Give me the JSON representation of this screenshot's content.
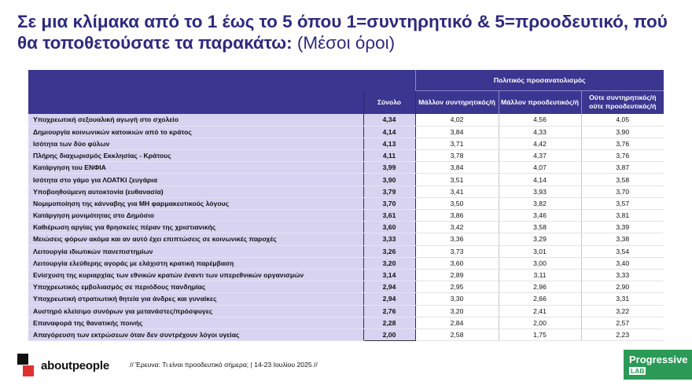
{
  "title": {
    "main": "Σε μια κλίμακα από το 1 έως το 5 όπου 1=συντηρητικό & 5=προοδευτικό, πού θα τοποθετούσατε τα παρακάτω:",
    "suffix": "(Μέσοι όροι)"
  },
  "chart_data": {
    "type": "table",
    "group_header": "Πολιτικός προσανατολισμός",
    "columns": [
      "Σύνολο",
      "Μάλλον συντηρητικός/ή",
      "Μάλλον προοδευτικός/ή",
      "Ούτε συντηρητικός/ή ούτε προοδευτικός/ή"
    ],
    "rows": [
      {
        "label": "Υποχρεωτική σεξουαλική αγωγή στο σχολείο",
        "values": [
          "4,34",
          "4,02",
          "4,56",
          "4,05"
        ]
      },
      {
        "label": "Δημιουργία κοινωνικών κατοικιών από το κράτος",
        "values": [
          "4,14",
          "3,84",
          "4,33",
          "3,90"
        ]
      },
      {
        "label": "Ισότητα των δύο φύλων",
        "values": [
          "4,13",
          "3,71",
          "4,42",
          "3,76"
        ]
      },
      {
        "label": "Πλήρης διαχωρισμός Εκκλησίας - Κράτους",
        "values": [
          "4,11",
          "3,78",
          "4,37",
          "3,76"
        ]
      },
      {
        "label": "Κατάργηση του ΕΝΦΙΑ",
        "values": [
          "3,99",
          "3,84",
          "4,07",
          "3,87"
        ]
      },
      {
        "label": "Ισότητα στο γάμο για ΛΟΑΤΚΙ ζευγάρια",
        "values": [
          "3,90",
          "3,51",
          "4,14",
          "3,58"
        ]
      },
      {
        "label": "Υποβοηθούμενη αυτοκτονία (ευθανασία)",
        "values": [
          "3,79",
          "3,41",
          "3,93",
          "3,70"
        ]
      },
      {
        "label": "Νομιμοποίηση της κάνναβης για ΜΗ φαρμακευτικούς λόγους",
        "values": [
          "3,70",
          "3,50",
          "3,82",
          "3,57"
        ]
      },
      {
        "label": "Κατάργηση μονιμότητας στο Δημόσιο",
        "values": [
          "3,61",
          "3,86",
          "3,46",
          "3,81"
        ]
      },
      {
        "label": "Καθιέρωση αργίας για θρησκείες πέραν της χριστιανικής",
        "values": [
          "3,60",
          "3,42",
          "3,58",
          "3,39"
        ]
      },
      {
        "label": "Μειώσεις φόρων ακόμα και αν αυτό έχει επιπτώσεις σε κοινωνικές παροχές",
        "values": [
          "3,33",
          "3,36",
          "3,29",
          "3,38"
        ]
      },
      {
        "label": "Λειτουργία ιδιωτικών πανεπιστημίων",
        "values": [
          "3,26",
          "3,73",
          "3,01",
          "3,54"
        ]
      },
      {
        "label": "Λειτουργία ελεύθερης αγοράς με ελάχιστη κρατική παρέμβαση",
        "values": [
          "3,20",
          "3,60",
          "3,00",
          "3,40"
        ]
      },
      {
        "label": "Ενίσχυση της κυριαρχίας των εθνικών κρατών έναντι των υπερεθνικών οργανισμών",
        "values": [
          "3,14",
          "2,89",
          "3,11",
          "3,33"
        ]
      },
      {
        "label": "Υποχρεωτικός εμβολιασμός σε περιόδους πανδημίας",
        "values": [
          "2,94",
          "2,95",
          "2,96",
          "2,90"
        ]
      },
      {
        "label": "Υποχρεωτική στρατιωτική θητεία για άνδρες και γυναίκες",
        "values": [
          "2,94",
          "3,30",
          "2,66",
          "3,31"
        ]
      },
      {
        "label": "Αυστηρό κλείσιμο συνόρων για μετανάστες/πρόσφυγες",
        "values": [
          "2,76",
          "3,20",
          "2,41",
          "3,22"
        ]
      },
      {
        "label": "Επαναφορά της θανατικής ποινής",
        "values": [
          "2,28",
          "2,84",
          "2,00",
          "2,57"
        ]
      },
      {
        "label": "Απαγόρευση των εκτρώσεων όταν δεν συντρέχουν λόγοι υγείας",
        "values": [
          "2,00",
          "2,58",
          "1,75",
          "2,23"
        ]
      }
    ]
  },
  "footer": {
    "logo_text": "aboutpeople",
    "source": "// Έρευνα: Τι είναι προοδευτικό σήμερα; | 14-23 Ιουλίου 2025 //",
    "partner_line1": "Progressive",
    "partner_line2": "LAB"
  },
  "icons": {
    "aboutpeople_mark": "aboutpeople-logo-icon"
  },
  "colors": {
    "title": "#2e2a7d",
    "header_bg": "#3b3790",
    "label_bg": "#d7d3f0",
    "partner_bg": "#2c9a57",
    "logo_red": "#e0302f"
  }
}
